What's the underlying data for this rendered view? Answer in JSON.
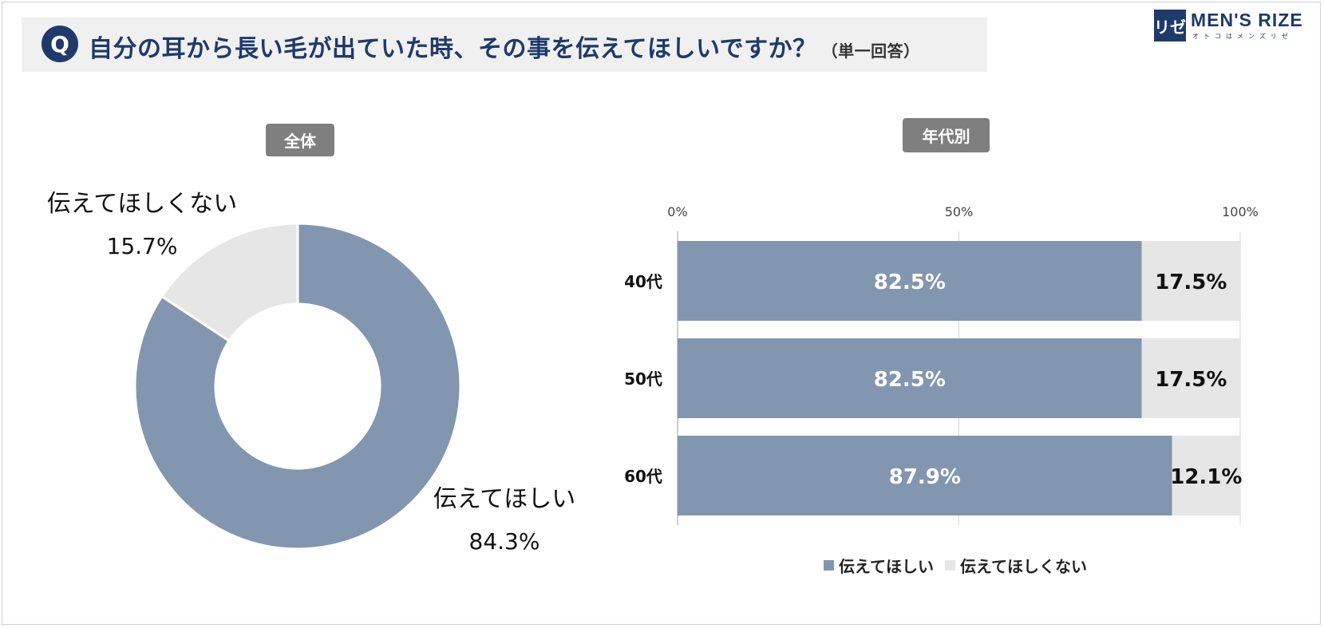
{
  "question": {
    "badge": "Q",
    "text": "自分の耳から長い毛が出ていた時、その事を伝えてほしいですか？",
    "note": "（単一回答）"
  },
  "logo": {
    "mark": "リゼ",
    "name": "MEN'S RIZE",
    "sub": "オトコはメンズリゼ"
  },
  "colors": {
    "yes": "#8396b0",
    "no": "#e6e6e6",
    "navy": "#1f3a6a",
    "tag": "#7f7f7f"
  },
  "chart_data": [
    {
      "type": "pie",
      "title": "全体",
      "categories": [
        "伝えてほしい",
        "伝えてほしくない"
      ],
      "values": [
        84.3,
        15.7
      ],
      "value_labels": [
        "84.3%",
        "15.7%"
      ]
    },
    {
      "type": "bar",
      "orientation": "horizontal",
      "stacked": true,
      "title": "年代別",
      "categories": [
        "40代",
        "50代",
        "60代"
      ],
      "series": [
        {
          "name": "伝えてほしい",
          "values": [
            82.5,
            82.5,
            87.9
          ],
          "labels": [
            "82.5%",
            "82.5%",
            "87.9%"
          ]
        },
        {
          "name": "伝えてほしくない",
          "values": [
            17.5,
            17.5,
            12.1
          ],
          "labels": [
            "17.5%",
            "17.5%",
            "12.1%"
          ]
        }
      ],
      "xlim": [
        0,
        100
      ],
      "xticks": [
        "0%",
        "50%",
        "100%"
      ],
      "legend": "bottom",
      "grid": true
    }
  ]
}
